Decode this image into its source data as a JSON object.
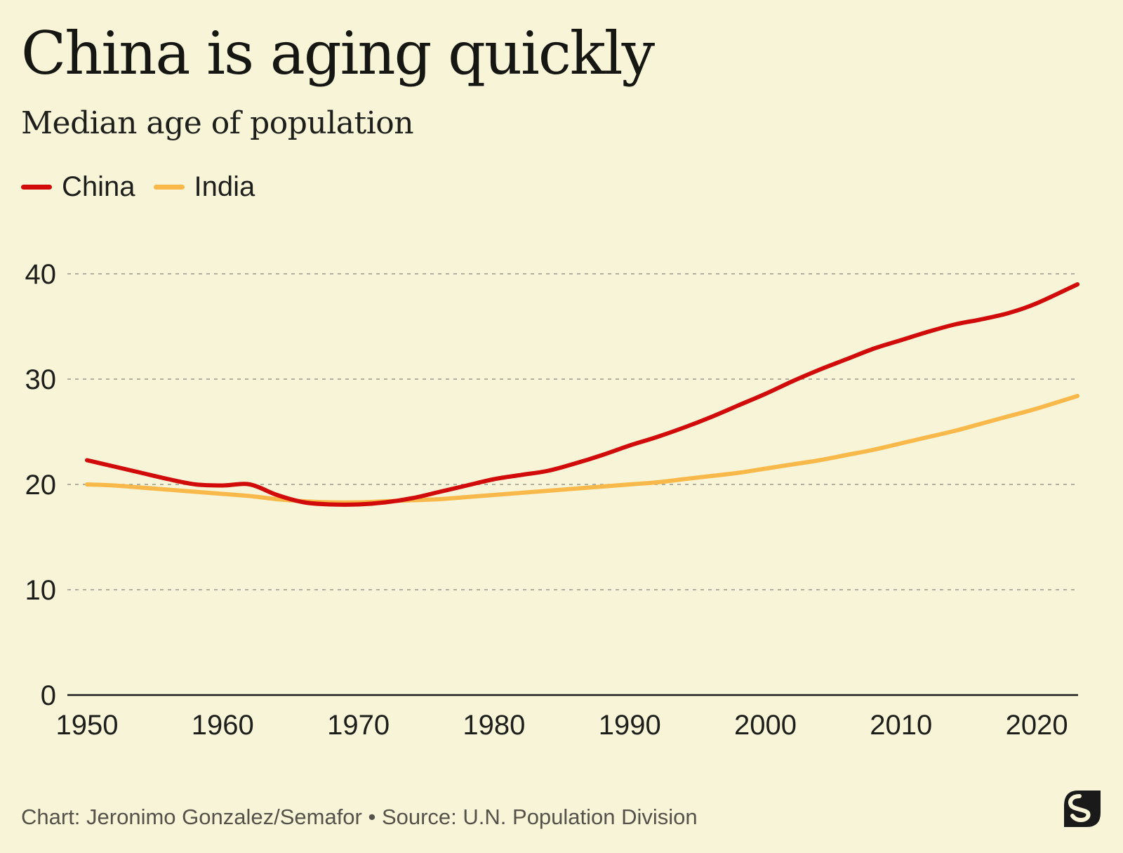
{
  "header": {
    "title": "China is aging quickly",
    "subtitle": "Median age of population"
  },
  "legend": [
    {
      "label": "China",
      "color": "#d10a0a"
    },
    {
      "label": "India",
      "color": "#f9b94a"
    }
  ],
  "footer": {
    "credit": "Chart: Jeronimo Gonzalez/Semafor • Source: U.N. Population Division"
  },
  "logo": {
    "icon": "semafor-s-logo"
  },
  "chart_data": {
    "type": "line",
    "title": "China is aging quickly",
    "subtitle": "Median age of population",
    "xlabel": "",
    "ylabel": "",
    "xlim": [
      1950,
      2023
    ],
    "ylim": [
      0,
      40
    ],
    "x_ticks": [
      "1950",
      "1960",
      "1970",
      "1980",
      "1990",
      "2000",
      "2010",
      "2020"
    ],
    "y_ticks": [
      "0",
      "10",
      "20",
      "30",
      "40"
    ],
    "grid": "horizontal dashed",
    "legend_position": "top-left",
    "x": [
      1950,
      1952,
      1954,
      1956,
      1958,
      1960,
      1962,
      1964,
      1966,
      1968,
      1970,
      1972,
      1974,
      1976,
      1978,
      1980,
      1982,
      1984,
      1986,
      1988,
      1990,
      1992,
      1994,
      1996,
      1998,
      2000,
      2002,
      2004,
      2006,
      2008,
      2010,
      2012,
      2014,
      2016,
      2018,
      2020,
      2023
    ],
    "series": [
      {
        "name": "China",
        "color": "#d10a0a",
        "values": [
          22.3,
          21.7,
          21.1,
          20.5,
          20.0,
          19.9,
          20.0,
          19.0,
          18.3,
          18.1,
          18.1,
          18.3,
          18.7,
          19.3,
          19.9,
          20.5,
          20.9,
          21.3,
          22.0,
          22.8,
          23.7,
          24.5,
          25.4,
          26.4,
          27.5,
          28.6,
          29.8,
          30.9,
          31.9,
          32.9,
          33.7,
          34.5,
          35.2,
          35.7,
          36.3,
          37.2,
          39.0
        ]
      },
      {
        "name": "India",
        "color": "#f9b94a",
        "values": [
          20.0,
          19.9,
          19.7,
          19.5,
          19.3,
          19.1,
          18.9,
          18.6,
          18.4,
          18.3,
          18.3,
          18.4,
          18.5,
          18.6,
          18.8,
          19.0,
          19.2,
          19.4,
          19.6,
          19.8,
          20.0,
          20.2,
          20.5,
          20.8,
          21.1,
          21.5,
          21.9,
          22.3,
          22.8,
          23.3,
          23.9,
          24.5,
          25.1,
          25.8,
          26.5,
          27.2,
          28.4
        ]
      }
    ]
  }
}
